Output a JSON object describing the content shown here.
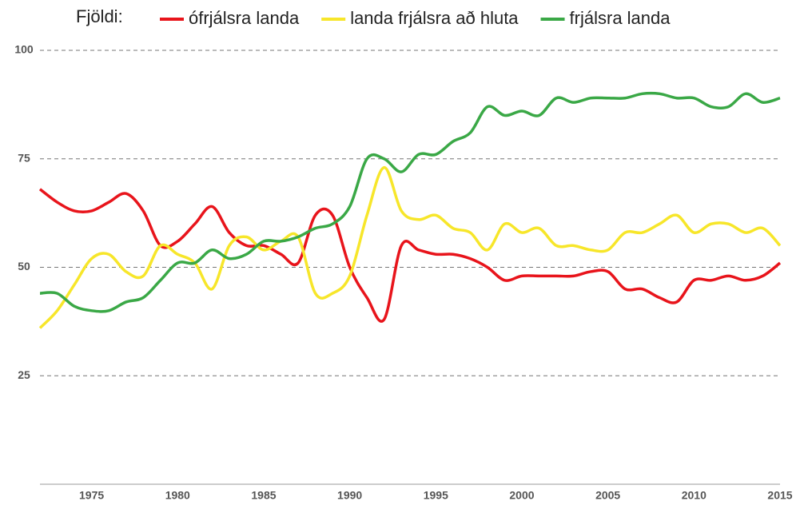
{
  "chart_data": {
    "type": "line",
    "legend_title": "Fjöldi:",
    "x": [
      1972,
      1973,
      1974,
      1975,
      1976,
      1977,
      1978,
      1979,
      1980,
      1981,
      1982,
      1983,
      1984,
      1985,
      1986,
      1987,
      1988,
      1989,
      1990,
      1991,
      1992,
      1993,
      1994,
      1995,
      1996,
      1997,
      1998,
      1999,
      2000,
      2001,
      2002,
      2003,
      2004,
      2005,
      2006,
      2007,
      2008,
      2009,
      2010,
      2011,
      2012,
      2013,
      2014,
      2015
    ],
    "series": [
      {
        "name": "ófrjálsra landa",
        "color": "#e8141b",
        "values": [
          68,
          65,
          63,
          63,
          65,
          67,
          63,
          55,
          56,
          60,
          64,
          58,
          55,
          55,
          53,
          51,
          62,
          62,
          50,
          43,
          38,
          55,
          54,
          53,
          53,
          52,
          50,
          47,
          48,
          48,
          48,
          48,
          49,
          49,
          45,
          45,
          43,
          42,
          47,
          47,
          48,
          47,
          48,
          51
        ]
      },
      {
        "name": "landa frjálsra að hluta",
        "color": "#f7e62a",
        "values": [
          36,
          40,
          46,
          52,
          53,
          49,
          48,
          55,
          53,
          51,
          45,
          55,
          57,
          54,
          56,
          57,
          44,
          44,
          48,
          62,
          73,
          63,
          61,
          62,
          59,
          58,
          54,
          60,
          58,
          59,
          55,
          55,
          54,
          54,
          58,
          58,
          60,
          62,
          58,
          60,
          60,
          58,
          59,
          55
        ]
      },
      {
        "name": "frjálsra landa",
        "color": "#3aa846",
        "values": [
          44,
          44,
          41,
          40,
          40,
          42,
          43,
          47,
          51,
          51,
          54,
          52,
          53,
          56,
          56,
          57,
          59,
          60,
          64,
          75,
          75,
          72,
          76,
          76,
          79,
          81,
          87,
          85,
          86,
          85,
          89,
          88,
          89,
          89,
          89,
          90,
          90,
          89,
          89,
          87,
          87,
          90,
          88,
          89
        ]
      }
    ],
    "xlim": [
      1972,
      2015
    ],
    "xticks": [
      1975,
      1980,
      1985,
      1990,
      1995,
      2000,
      2005,
      2010,
      2015
    ],
    "ylim": [
      0,
      100
    ],
    "yticks": [
      25,
      50,
      75,
      100
    ],
    "grid": true
  }
}
